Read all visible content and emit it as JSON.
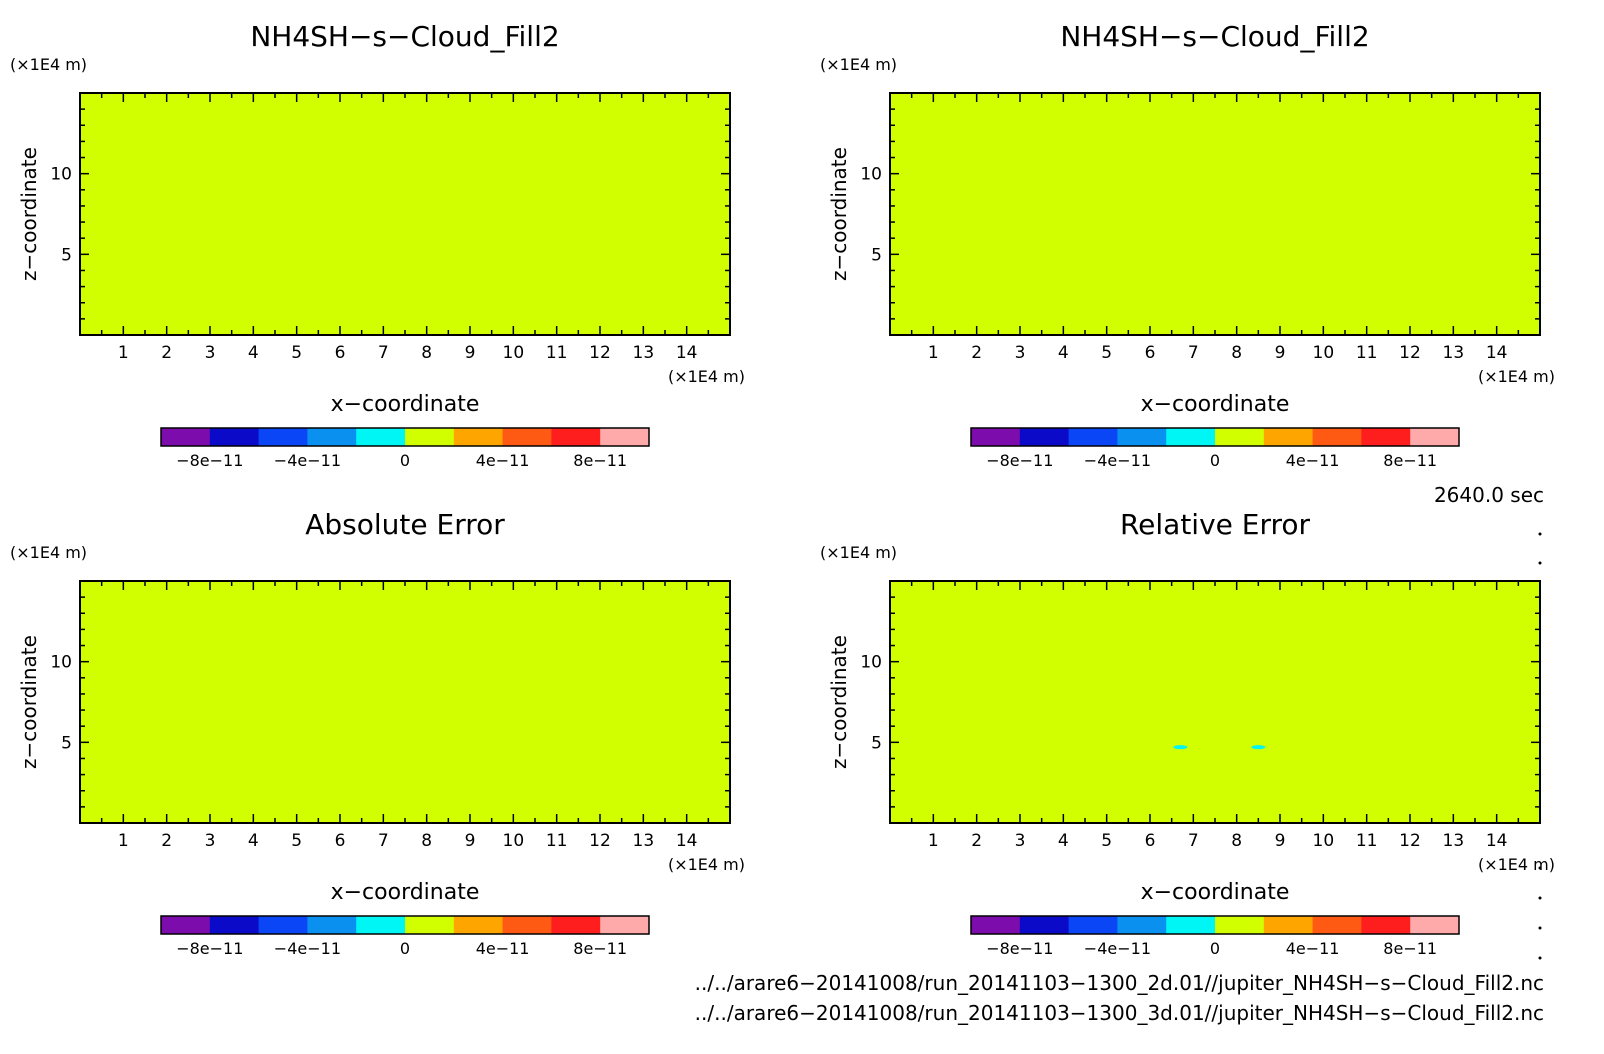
{
  "panels": [
    {
      "title": "NH4SH−s−Cloud_Fill2",
      "z_unit": "(×1E4 m)",
      "x_unit": "(×1E4 m)",
      "xlabel": "x−coordinate",
      "ylabel": "z−coordinate"
    },
    {
      "title": "NH4SH−s−Cloud_Fill2",
      "z_unit": "(×1E4 m)",
      "x_unit": "(×1E4 m)",
      "xlabel": "x−coordinate",
      "ylabel": "z−coordinate"
    },
    {
      "title": "Absolute Error",
      "z_unit": "(×1E4 m)",
      "x_unit": "(×1E4 m)",
      "xlabel": "x−coordinate",
      "ylabel": "z−coordinate"
    },
    {
      "title": "Relative Error",
      "z_unit": "(×1E4 m)",
      "x_unit": "(×1E4 m)",
      "xlabel": "x−coordinate",
      "ylabel": "z−coordinate"
    }
  ],
  "time_label": "2640.0 sec",
  "files": [
    "../../arare6−20141008/run_20141103−1300_2d.01//jupiter_NH4SH−s−Cloud_Fill2.nc",
    "../../arare6−20141008/run_20141103−1300_3d.01//jupiter_NH4SH−s−Cloud_Fill2.nc"
  ],
  "colorbar": {
    "colors": [
      "#7d0cad",
      "#0a0ac8",
      "#0a46f5",
      "#0a91f0",
      "#00f5f5",
      "#d2ff00",
      "#ffa500",
      "#ff5a14",
      "#ff1e1e",
      "#ffaaaa"
    ],
    "tick_values": [
      -8e-11,
      -4e-11,
      0,
      4e-11,
      8e-11
    ],
    "tick_labels": [
      "−8e−11",
      "−4e−11",
      "0",
      "4e−11",
      "8e−11"
    ],
    "range": [
      -1e-10,
      1e-10
    ]
  },
  "chart_data": [
    {
      "type": "heatmap",
      "title": "NH4SH−s−Cloud_Fill2",
      "xlabel": "x−coordinate",
      "ylabel": "z−coordinate",
      "xlim": [
        0,
        15
      ],
      "ylim": [
        0,
        15
      ],
      "x_ticks": [
        1,
        2,
        3,
        4,
        5,
        6,
        7,
        8,
        9,
        10,
        11,
        12,
        13,
        14
      ],
      "y_ticks": [
        5,
        10
      ],
      "field_value": 0,
      "anomalies": []
    },
    {
      "type": "heatmap",
      "title": "NH4SH−s−Cloud_Fill2",
      "xlabel": "x−coordinate",
      "ylabel": "z−coordinate",
      "xlim": [
        0,
        15
      ],
      "ylim": [
        0,
        15
      ],
      "x_ticks": [
        1,
        2,
        3,
        4,
        5,
        6,
        7,
        8,
        9,
        10,
        11,
        12,
        13,
        14
      ],
      "y_ticks": [
        5,
        10
      ],
      "field_value": 0,
      "anomalies": []
    },
    {
      "type": "heatmap",
      "title": "Absolute Error",
      "xlabel": "x−coordinate",
      "ylabel": "z−coordinate",
      "xlim": [
        0,
        15
      ],
      "ylim": [
        0,
        15
      ],
      "x_ticks": [
        1,
        2,
        3,
        4,
        5,
        6,
        7,
        8,
        9,
        10,
        11,
        12,
        13,
        14
      ],
      "y_ticks": [
        5,
        10
      ],
      "field_value": 0,
      "anomalies": []
    },
    {
      "type": "heatmap",
      "title": "Relative Error",
      "xlabel": "x−coordinate",
      "ylabel": "z−coordinate",
      "xlim": [
        0,
        15
      ],
      "ylim": [
        0,
        15
      ],
      "x_ticks": [
        1,
        2,
        3,
        4,
        5,
        6,
        7,
        8,
        9,
        10,
        11,
        12,
        13,
        14
      ],
      "y_ticks": [
        5,
        10
      ],
      "field_value": 0,
      "anomalies": [
        {
          "x": 6.7,
          "z": 4.7,
          "value": -1e-11
        },
        {
          "x": 8.5,
          "z": 4.7,
          "value": -1e-11
        }
      ]
    }
  ]
}
